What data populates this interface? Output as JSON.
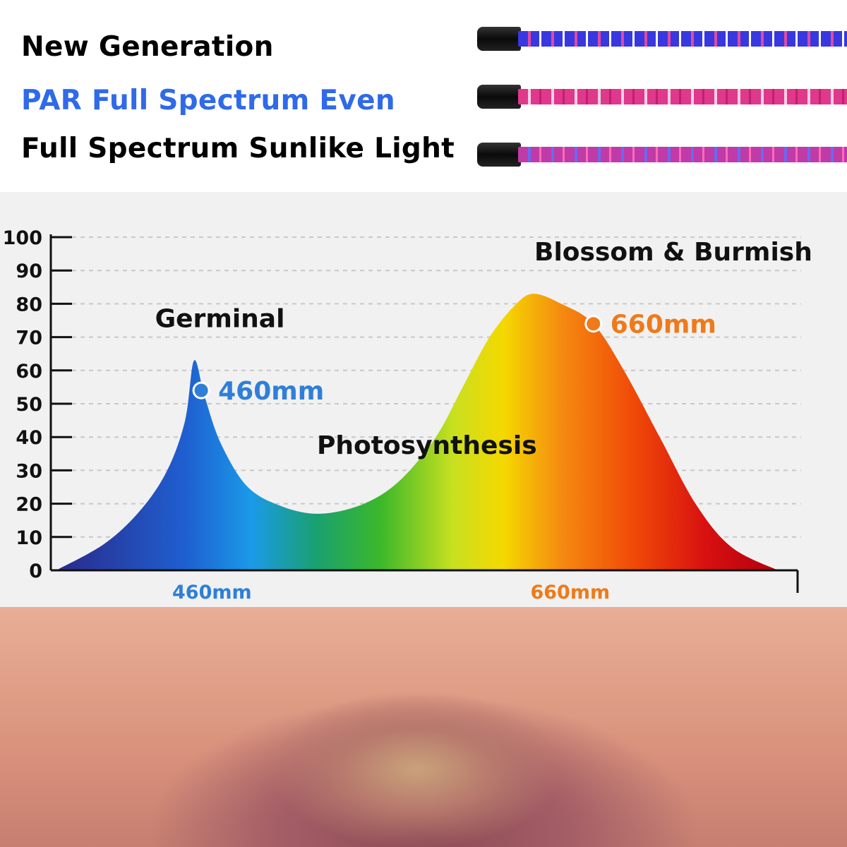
{
  "header": {
    "line1": "New Generation",
    "line2": "PAR Full Spectrum Even",
    "line3": "Full Spectrum Sunlike Light",
    "line1_color": "#111111",
    "line2_color": "#2f6ae8",
    "line3_color": "#111111"
  },
  "led_bars": [
    {
      "name": "blue-led-bar",
      "color": "#3a3ae0"
    },
    {
      "name": "pink-led-bar",
      "color": "#e0388a"
    },
    {
      "name": "purple-led-bar",
      "color": "#c03aa8"
    }
  ],
  "chart_data": {
    "type": "area",
    "title": "",
    "xlabel": "",
    "ylabel": "",
    "ylim": [
      0,
      100
    ],
    "yticks": [
      0,
      10,
      20,
      30,
      40,
      50,
      60,
      70,
      80,
      90,
      100
    ],
    "xlim": [
      370,
      787
    ],
    "xtick_labels": [
      {
        "value": 460,
        "label": "460mm",
        "color": "#2f7fd8"
      },
      {
        "value": 660,
        "label": "660mm",
        "color": "#ef7a1a"
      }
    ],
    "grid": "horizontal dashed",
    "fill": "rainbow gradient (blue to red)",
    "points": [
      [
        373,
        0
      ],
      [
        400,
        8
      ],
      [
        420,
        18
      ],
      [
        435,
        30
      ],
      [
        445,
        45
      ],
      [
        450,
        63
      ],
      [
        456,
        52
      ],
      [
        465,
        38
      ],
      [
        480,
        25
      ],
      [
        500,
        19
      ],
      [
        521,
        17
      ],
      [
        545,
        20
      ],
      [
        565,
        27
      ],
      [
        585,
        40
      ],
      [
        600,
        55
      ],
      [
        615,
        70
      ],
      [
        630,
        80
      ],
      [
        640,
        83
      ],
      [
        655,
        80
      ],
      [
        673,
        74
      ],
      [
        690,
        60
      ],
      [
        710,
        40
      ],
      [
        730,
        20
      ],
      [
        750,
        7
      ],
      [
        776,
        0
      ]
    ],
    "markers": [
      {
        "x": 454,
        "y": 54,
        "label": "460mm",
        "color": "#2f7fd8"
      },
      {
        "x": 673,
        "y": 74,
        "label": "660mm",
        "color": "#ef7a1a"
      }
    ],
    "annotations": [
      {
        "text": "Germinal",
        "x": 440,
        "y": 73
      },
      {
        "text": "Photosynthesis",
        "x": 580,
        "y": 35
      },
      {
        "text": "Blossom & Burmish",
        "x": 640,
        "y": 93
      }
    ]
  }
}
